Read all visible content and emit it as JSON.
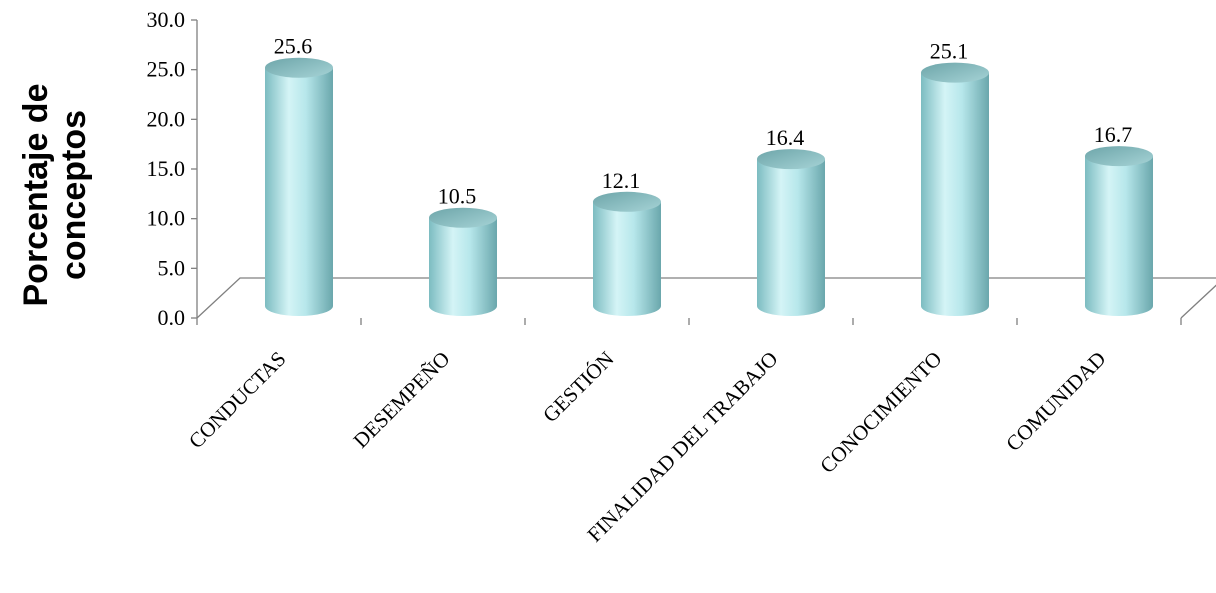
{
  "chart_data": {
    "type": "bar",
    "title": "",
    "xlabel": "",
    "ylabel": "Porcentaje de\nconceptos",
    "categories": [
      "CONDUCTAS",
      "DESEMPEÑO",
      "GESTIÓN",
      "FINALIDAD DEL TRABAJO",
      "CONOCIMIENTO",
      "COMUNIDAD"
    ],
    "series": [
      {
        "values": [
          25.6,
          10.5,
          12.1,
          16.4,
          25.1,
          16.7
        ]
      }
    ],
    "data_labels": [
      "25.6",
      "10.5",
      "12.1",
      "16.4",
      "25.1",
      "16.7"
    ],
    "y_ticks": [
      "0.0",
      "5.0",
      "10.0",
      "15.0",
      "20.0",
      "25.0",
      "30.0"
    ],
    "ylim": [
      0,
      30
    ],
    "grid": false,
    "legend": "none",
    "bar_shape": "3d-cylinder",
    "colors": {
      "bar_light": "#d2f2f4",
      "bar_mid": "#9fdadf",
      "bar_dark": "#5e9ea3",
      "axis": "#808080"
    }
  }
}
